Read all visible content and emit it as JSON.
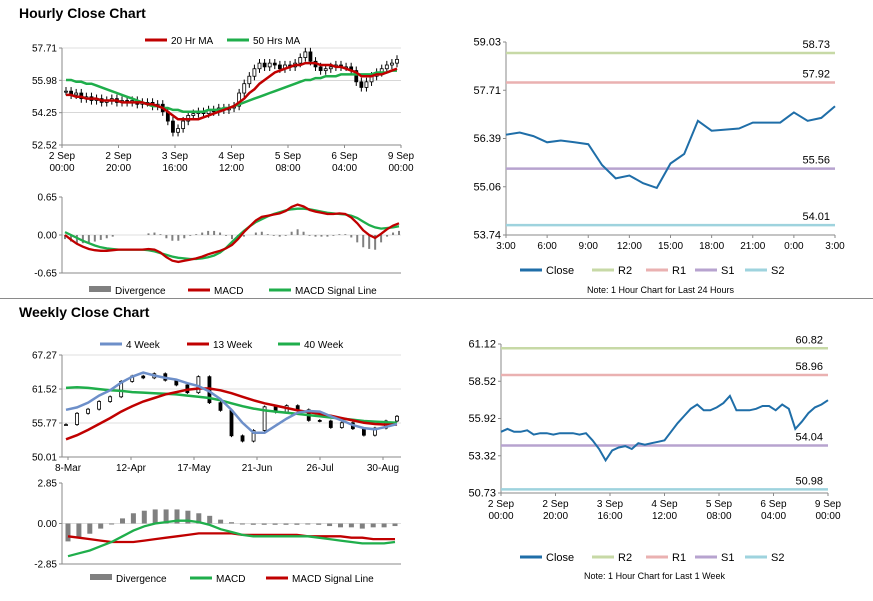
{
  "sections": {
    "hourly_title": "Hourly Close Chart",
    "weekly_title": "Weekly Close Chart"
  },
  "colors": {
    "ma20": "#c00000",
    "ma50": "#1fae4b",
    "w4": "#6d8fc9",
    "w13": "#c00000",
    "w40": "#1fae4b",
    "close": "#1f6ea8",
    "r2": "#c7d9a6",
    "r1": "#eab1b1",
    "s1": "#b7a3cf",
    "s2": "#9ed3de",
    "divergence": "#808080",
    "gridline": "#bfbfbf"
  },
  "chart_data": [
    {
      "id": "hourly-price",
      "type": "candlestick",
      "title": "Hourly Close Chart",
      "legend": [
        "20 Hr MA",
        "50 Hrs MA"
      ],
      "y_ticks": [
        "57.71",
        "55.98",
        "54.25",
        "52.52"
      ],
      "ylim": [
        52.52,
        57.71
      ],
      "x_ticks": [
        [
          "2 Sep",
          "00:00"
        ],
        [
          "2 Sep",
          "20:00"
        ],
        [
          "3 Sep",
          "16:00"
        ],
        [
          "4 Sep",
          "12:00"
        ],
        [
          "5 Sep",
          "08:00"
        ],
        [
          "6 Sep",
          "04:00"
        ],
        [
          "9 Sep",
          "00:00"
        ]
      ],
      "close": [
        55.4,
        55.2,
        55.3,
        55.0,
        55.1,
        54.9,
        55.0,
        54.8,
        54.9,
        55.0,
        54.8,
        54.9,
        54.8,
        54.9,
        54.7,
        54.8,
        54.8,
        54.6,
        54.7,
        54.3,
        53.8,
        53.2,
        53.4,
        53.8,
        54.1,
        54.2,
        54.3,
        54.2,
        54.4,
        54.3,
        54.5,
        54.4,
        54.5,
        54.6,
        55.3,
        55.8,
        56.2,
        56.6,
        56.9,
        56.7,
        56.9,
        56.8,
        56.6,
        56.8,
        56.7,
        56.9,
        57.2,
        57.5,
        57.0,
        56.7,
        56.5,
        56.6,
        56.7,
        56.8,
        56.7,
        56.7,
        56.5,
        55.9,
        55.6,
        55.9,
        56.2,
        56.4,
        56.6,
        56.8,
        56.9,
        57.1
      ],
      "ma20": [
        55.2,
        55.2,
        55.1,
        55.1,
        55.0,
        55.0,
        55.0,
        54.9,
        54.9,
        54.9,
        54.9,
        54.8,
        54.8,
        54.8,
        54.8,
        54.8,
        54.7,
        54.7,
        54.6,
        54.5,
        54.3,
        54.1,
        53.9,
        53.9,
        53.9,
        53.9,
        53.9,
        54.0,
        54.1,
        54.2,
        54.3,
        54.4,
        54.5,
        54.6,
        54.8,
        55.0,
        55.3,
        55.5,
        55.8,
        56.0,
        56.2,
        56.4,
        56.5,
        56.6,
        56.7,
        56.8,
        56.8,
        56.9,
        56.9,
        56.9,
        56.8,
        56.8,
        56.8,
        56.7,
        56.7,
        56.6,
        56.5,
        56.4,
        56.2,
        56.2,
        56.2,
        56.3,
        56.3,
        56.4,
        56.5,
        56.6
      ],
      "ma50": [
        56.0,
        56.0,
        55.9,
        55.9,
        55.8,
        55.8,
        55.7,
        55.6,
        55.5,
        55.4,
        55.3,
        55.2,
        55.1,
        55.0,
        54.9,
        54.8,
        54.7,
        54.6,
        54.6,
        54.5,
        54.5,
        54.4,
        54.4,
        54.3,
        54.3,
        54.3,
        54.3,
        54.3,
        54.4,
        54.4,
        54.4,
        54.5,
        54.5,
        54.6,
        54.7,
        54.8,
        54.9,
        55.0,
        55.1,
        55.2,
        55.3,
        55.4,
        55.5,
        55.6,
        55.7,
        55.8,
        55.9,
        56.0,
        56.0,
        56.1,
        56.1,
        56.2,
        56.2,
        56.2,
        56.3,
        56.3,
        56.3,
        56.3,
        56.3,
        56.3,
        56.3,
        56.4,
        56.4,
        56.4,
        56.5,
        56.5
      ]
    },
    {
      "id": "hourly-macd",
      "type": "macd",
      "legend": [
        "Divergence",
        "MACD",
        "MACD Signal Line"
      ],
      "y_ticks": [
        "0.65",
        "0.00",
        "-0.65"
      ],
      "ylim": [
        -0.65,
        0.65
      ],
      "macd": [
        0.0,
        -0.08,
        -0.15,
        -0.2,
        -0.24,
        -0.26,
        -0.27,
        -0.27,
        -0.26,
        -0.25,
        -0.25,
        -0.25,
        -0.25,
        -0.25,
        -0.24,
        -0.25,
        -0.3,
        -0.38,
        -0.44,
        -0.46,
        -0.44,
        -0.42,
        -0.4,
        -0.37,
        -0.33,
        -0.3,
        -0.27,
        -0.23,
        -0.17,
        -0.07,
        0.05,
        0.15,
        0.25,
        0.31,
        0.33,
        0.35,
        0.37,
        0.41,
        0.48,
        0.52,
        0.49,
        0.43,
        0.4,
        0.38,
        0.36,
        0.36,
        0.37,
        0.36,
        0.3,
        0.2,
        0.08,
        0.0,
        -0.05,
        0.02,
        0.1,
        0.16,
        0.2
      ],
      "signal": [
        0.05,
        0.0,
        -0.05,
        -0.1,
        -0.14,
        -0.18,
        -0.21,
        -0.23,
        -0.24,
        -0.25,
        -0.25,
        -0.25,
        -0.25,
        -0.25,
        -0.26,
        -0.28,
        -0.31,
        -0.34,
        -0.37,
        -0.39,
        -0.4,
        -0.41,
        -0.41,
        -0.4,
        -0.38,
        -0.35,
        -0.3,
        -0.22,
        -0.12,
        -0.02,
        0.07,
        0.15,
        0.22,
        0.27,
        0.32,
        0.36,
        0.39,
        0.42,
        0.44,
        0.45,
        0.45,
        0.44,
        0.42,
        0.4,
        0.38,
        0.37,
        0.36,
        0.35,
        0.33,
        0.29,
        0.23,
        0.17,
        0.13,
        0.11,
        0.12,
        0.13,
        0.15
      ]
    },
    {
      "id": "pivot-24h",
      "type": "line",
      "y_ticks": [
        "59.03",
        "57.71",
        "56.39",
        "55.06",
        "53.74"
      ],
      "ylim": [
        53.74,
        59.03
      ],
      "x_ticks": [
        "3:00",
        "6:00",
        "9:00",
        "12:00",
        "15:00",
        "18:00",
        "21:00",
        "0:00",
        "3:00"
      ],
      "close": [
        56.49,
        56.55,
        56.45,
        56.28,
        56.33,
        56.28,
        56.23,
        55.66,
        55.29,
        55.37,
        55.16,
        55.03,
        55.7,
        55.96,
        56.87,
        56.6,
        56.63,
        56.66,
        56.82,
        56.82,
        56.82,
        57.1,
        56.87,
        56.95,
        57.27
      ],
      "levels": [
        {
          "name": "R2",
          "value": 58.73,
          "label": "58.73"
        },
        {
          "name": "R1",
          "value": 57.92,
          "label": "57.92"
        },
        {
          "name": "S1",
          "value": 55.56,
          "label": "55.56"
        },
        {
          "name": "S2",
          "value": 54.01,
          "label": "54.01"
        }
      ],
      "legend": [
        "Close",
        "R2",
        "R1",
        "S1",
        "S2"
      ],
      "note": "Note: 1 Hour Chart for Last 24 Hours"
    },
    {
      "id": "weekly-price",
      "type": "candlestick",
      "title": "Weekly Close Chart",
      "legend": [
        "4 Week",
        "13 Week",
        "40 Week"
      ],
      "y_ticks": [
        "67.27",
        "61.52",
        "55.77",
        "50.01"
      ],
      "ylim": [
        50.01,
        67.27
      ],
      "x_ticks": [
        "8-Mar",
        "12-Apr",
        "17-May",
        "21-Jun",
        "26-Jul",
        "30-Aug"
      ],
      "close": [
        55.5,
        57.4,
        58.1,
        59.4,
        60.2,
        62.8,
        63.7,
        63.4,
        64.1,
        63.0,
        62.2,
        60.9,
        63.6,
        59.2,
        57.9,
        53.6,
        52.7,
        54.5,
        58.5,
        57.6,
        58.7,
        58.0,
        56.2,
        56.1,
        55.0,
        55.8,
        54.8,
        53.7,
        54.9,
        56.1,
        56.9
      ],
      "w4": [
        58.0,
        58.4,
        59.2,
        60.4,
        61.3,
        62.6,
        63.6,
        64.3,
        63.8,
        63.4,
        63.1,
        62.5,
        62.0,
        61.1,
        59.8,
        58.0,
        55.8,
        54.1,
        54.1,
        55.3,
        56.5,
        57.5,
        57.8,
        57.7,
        56.9,
        56.2,
        55.4,
        54.9,
        54.7,
        55.1,
        55.6
      ],
      "w13": [
        53.0,
        53.7,
        54.6,
        55.6,
        56.6,
        57.7,
        58.6,
        59.4,
        60.0,
        60.6,
        61.0,
        61.4,
        61.6,
        61.6,
        61.3,
        60.8,
        60.2,
        59.6,
        59.1,
        58.7,
        58.3,
        57.9,
        57.6,
        57.3,
        57.0,
        56.6,
        56.2,
        55.8,
        55.6,
        55.5,
        55.5
      ],
      "w40": [
        61.7,
        61.8,
        61.7,
        61.5,
        61.3,
        61.2,
        61.0,
        60.9,
        60.8,
        60.7,
        60.6,
        60.4,
        60.2,
        60.0,
        59.6,
        59.1,
        58.6,
        58.2,
        57.9,
        57.7,
        57.5,
        57.3,
        57.1,
        56.9,
        56.7,
        56.5,
        56.3,
        56.1,
        56.0,
        55.9,
        55.8
      ]
    },
    {
      "id": "weekly-macd",
      "type": "macd",
      "legend": [
        "Divergence",
        "MACD",
        "MACD Signal Line"
      ],
      "y_ticks": [
        "2.85",
        "0.00",
        "-2.85"
      ],
      "ylim": [
        -2.85,
        2.85
      ],
      "macd": [
        -2.3,
        -2.1,
        -1.9,
        -1.6,
        -1.3,
        -0.9,
        -0.5,
        -0.2,
        0.0,
        0.1,
        0.2,
        0.2,
        0.1,
        -0.1,
        -0.4,
        -0.6,
        -0.8,
        -0.9,
        -0.9,
        -0.9,
        -0.9,
        -0.9,
        -0.9,
        -1.0,
        -1.1,
        -1.2,
        -1.3,
        -1.4,
        -1.4,
        -1.4,
        -1.3
      ],
      "signal": [
        -0.9,
        -1.0,
        -1.1,
        -1.2,
        -1.3,
        -1.3,
        -1.3,
        -1.2,
        -1.1,
        -1.0,
        -0.9,
        -0.8,
        -0.7,
        -0.7,
        -0.7,
        -0.7,
        -0.8,
        -0.8,
        -0.8,
        -0.8,
        -0.8,
        -0.8,
        -0.9,
        -0.9,
        -0.9,
        -0.9,
        -1.0,
        -1.0,
        -1.1,
        -1.1,
        -1.1
      ]
    },
    {
      "id": "pivot-1w",
      "type": "line",
      "y_ticks": [
        "61.12",
        "58.52",
        "55.92",
        "53.32",
        "50.73"
      ],
      "ylim": [
        50.73,
        61.12
      ],
      "x_ticks": [
        [
          "2 Sep",
          "00:00"
        ],
        [
          "2 Sep",
          "20:00"
        ],
        [
          "3 Sep",
          "16:00"
        ],
        [
          "4 Sep",
          "12:00"
        ],
        [
          "5 Sep",
          "08:00"
        ],
        [
          "6 Sep",
          "04:00"
        ],
        [
          "9 Sep",
          "00:00"
        ]
      ],
      "close": [
        55.0,
        55.2,
        55.0,
        55.0,
        55.1,
        54.8,
        54.9,
        54.9,
        54.8,
        54.9,
        54.9,
        54.9,
        54.8,
        54.9,
        54.4,
        53.8,
        53.0,
        53.7,
        53.9,
        54.0,
        53.8,
        54.2,
        54.1,
        54.2,
        54.3,
        54.4,
        55.0,
        55.6,
        56.1,
        56.6,
        56.9,
        56.5,
        56.5,
        56.7,
        57.0,
        57.5,
        56.5,
        56.5,
        56.5,
        56.6,
        56.8,
        56.8,
        56.5,
        56.9,
        56.6,
        55.2,
        55.7,
        56.3,
        56.7,
        56.9,
        57.2
      ],
      "levels": [
        {
          "name": "R2",
          "value": 60.82,
          "label": "60.82"
        },
        {
          "name": "R1",
          "value": 58.96,
          "label": "58.96"
        },
        {
          "name": "S1",
          "value": 54.04,
          "label": "54.04"
        },
        {
          "name": "S2",
          "value": 50.98,
          "label": "50.98"
        }
      ],
      "legend": [
        "Close",
        "R2",
        "R1",
        "S1",
        "S2"
      ],
      "note": "Note: 1 Hour Chart for Last 1 Week"
    }
  ]
}
